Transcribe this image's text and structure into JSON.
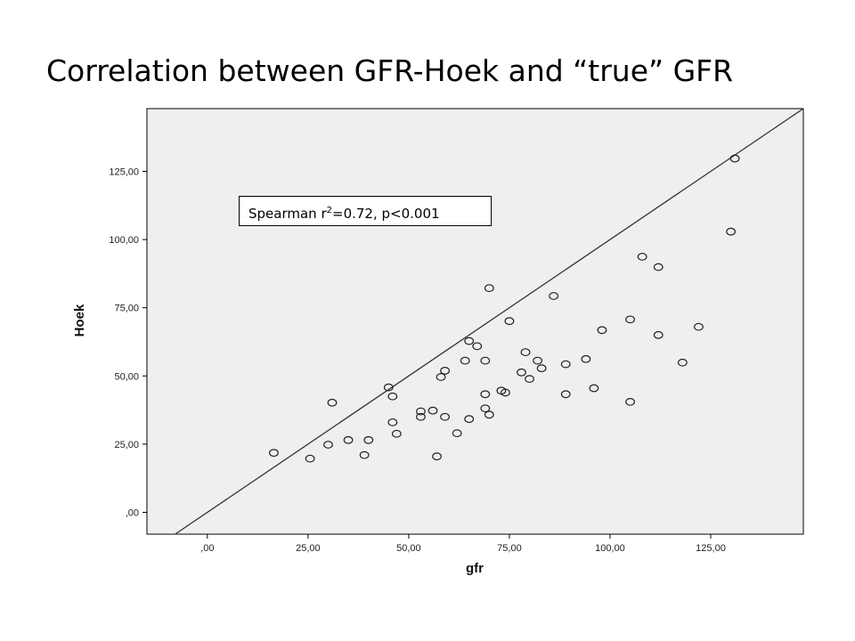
{
  "title": "Correlation between GFR-Hoek and “true” GFR",
  "chart_data": {
    "type": "scatter",
    "xlabel": "gfr",
    "ylabel": "Hoek",
    "xlim": [
      -15,
      148
    ],
    "ylim": [
      -8,
      148
    ],
    "x_ticks": [
      0,
      25,
      50,
      75,
      100,
      125
    ],
    "y_ticks": [
      0,
      25,
      50,
      75,
      100,
      125
    ],
    "x_tick_labels": [
      ",00",
      "25,00",
      "50,00",
      "75,00",
      "100,00",
      "125,00"
    ],
    "y_tick_labels": [
      ",00",
      "25,00",
      "50,00",
      "75,00",
      "100,00",
      "125,00"
    ],
    "grid": false,
    "reference_line": "identity",
    "annotation": {
      "prefix": "Spearman r",
      "superscript": "2",
      "suffix": "=0.72, p<0.001"
    },
    "points": [
      {
        "x": 16.5,
        "y": 21.8
      },
      {
        "x": 25.5,
        "y": 19.7
      },
      {
        "x": 30,
        "y": 24.8
      },
      {
        "x": 31,
        "y": 40.2
      },
      {
        "x": 35,
        "y": 26.5
      },
      {
        "x": 39,
        "y": 21.0
      },
      {
        "x": 40,
        "y": 26.5
      },
      {
        "x": 45,
        "y": 45.8
      },
      {
        "x": 46,
        "y": 42.5
      },
      {
        "x": 46,
        "y": 33.0
      },
      {
        "x": 47,
        "y": 28.8
      },
      {
        "x": 53,
        "y": 37.0
      },
      {
        "x": 53,
        "y": 35.0
      },
      {
        "x": 56,
        "y": 37.3
      },
      {
        "x": 57,
        "y": 20.5
      },
      {
        "x": 58,
        "y": 49.6
      },
      {
        "x": 59,
        "y": 51.9
      },
      {
        "x": 59,
        "y": 35.0
      },
      {
        "x": 62,
        "y": 29.0
      },
      {
        "x": 64,
        "y": 55.6
      },
      {
        "x": 65,
        "y": 62.8
      },
      {
        "x": 65,
        "y": 34.2
      },
      {
        "x": 67,
        "y": 60.9
      },
      {
        "x": 69,
        "y": 55.6
      },
      {
        "x": 69,
        "y": 43.3
      },
      {
        "x": 69,
        "y": 38.1
      },
      {
        "x": 70,
        "y": 82.2
      },
      {
        "x": 70,
        "y": 35.8
      },
      {
        "x": 73,
        "y": 44.6
      },
      {
        "x": 74,
        "y": 43.9
      },
      {
        "x": 75,
        "y": 70.1
      },
      {
        "x": 78,
        "y": 51.3
      },
      {
        "x": 79,
        "y": 58.7
      },
      {
        "x": 80,
        "y": 48.9
      },
      {
        "x": 82,
        "y": 55.6
      },
      {
        "x": 83,
        "y": 52.8
      },
      {
        "x": 86,
        "y": 79.3
      },
      {
        "x": 89,
        "y": 54.3
      },
      {
        "x": 89,
        "y": 43.3
      },
      {
        "x": 94,
        "y": 56.2
      },
      {
        "x": 96,
        "y": 45.5
      },
      {
        "x": 98,
        "y": 66.8
      },
      {
        "x": 105,
        "y": 70.7
      },
      {
        "x": 105,
        "y": 40.5
      },
      {
        "x": 108,
        "y": 93.7
      },
      {
        "x": 112,
        "y": 89.9
      },
      {
        "x": 112,
        "y": 65.0
      },
      {
        "x": 118,
        "y": 54.9
      },
      {
        "x": 122,
        "y": 68.0
      },
      {
        "x": 130,
        "y": 102.9
      },
      {
        "x": 131,
        "y": 129.7
      }
    ]
  }
}
